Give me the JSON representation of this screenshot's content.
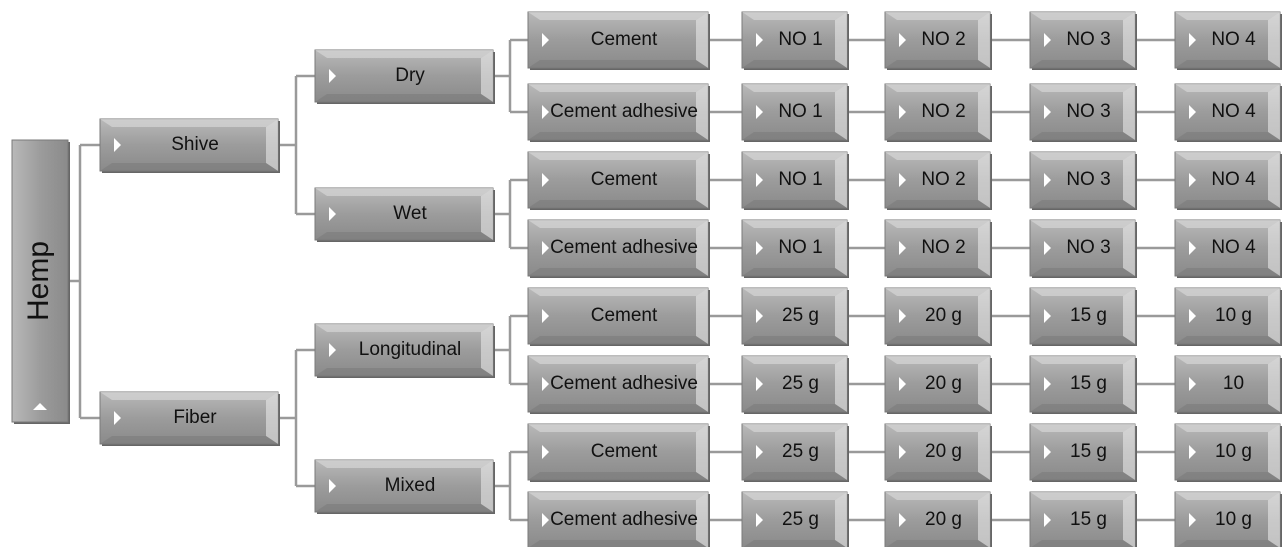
{
  "root": "Hemp",
  "branches": [
    {
      "label": "Shive",
      "children": [
        {
          "label": "Dry",
          "rows": [
            {
              "label": "Cement",
              "items": [
                "NO 1",
                "NO 2",
                "NO 3",
                "NO 4"
              ]
            },
            {
              "label": "Cement adhesive",
              "items": [
                "NO 1",
                "NO 2",
                "NO 3",
                "NO 4"
              ]
            }
          ]
        },
        {
          "label": "Wet",
          "rows": [
            {
              "label": "Cement",
              "items": [
                "NO 1",
                "NO 2",
                "NO 3",
                "NO 4"
              ]
            },
            {
              "label": "Cement adhesive",
              "items": [
                "NO 1",
                "NO 2",
                "NO 3",
                "NO 4"
              ]
            }
          ]
        }
      ]
    },
    {
      "label": "Fiber",
      "children": [
        {
          "label": "Longitudinal",
          "rows": [
            {
              "label": "Cement",
              "items": [
                "25 g",
                "20 g",
                "15 g",
                "10 g"
              ]
            },
            {
              "label": "Cement adhesive",
              "items": [
                "25 g",
                "20 g",
                "15 g",
                "10"
              ]
            }
          ]
        },
        {
          "label": "Mixed",
          "rows": [
            {
              "label": "Cement",
              "items": [
                "25 g",
                "20 g",
                "15 g",
                "10 g"
              ]
            },
            {
              "label": "Cement adhesive",
              "items": [
                "25 g",
                "20 g",
                "15 g",
                "10 g"
              ]
            }
          ]
        }
      ]
    }
  ]
}
